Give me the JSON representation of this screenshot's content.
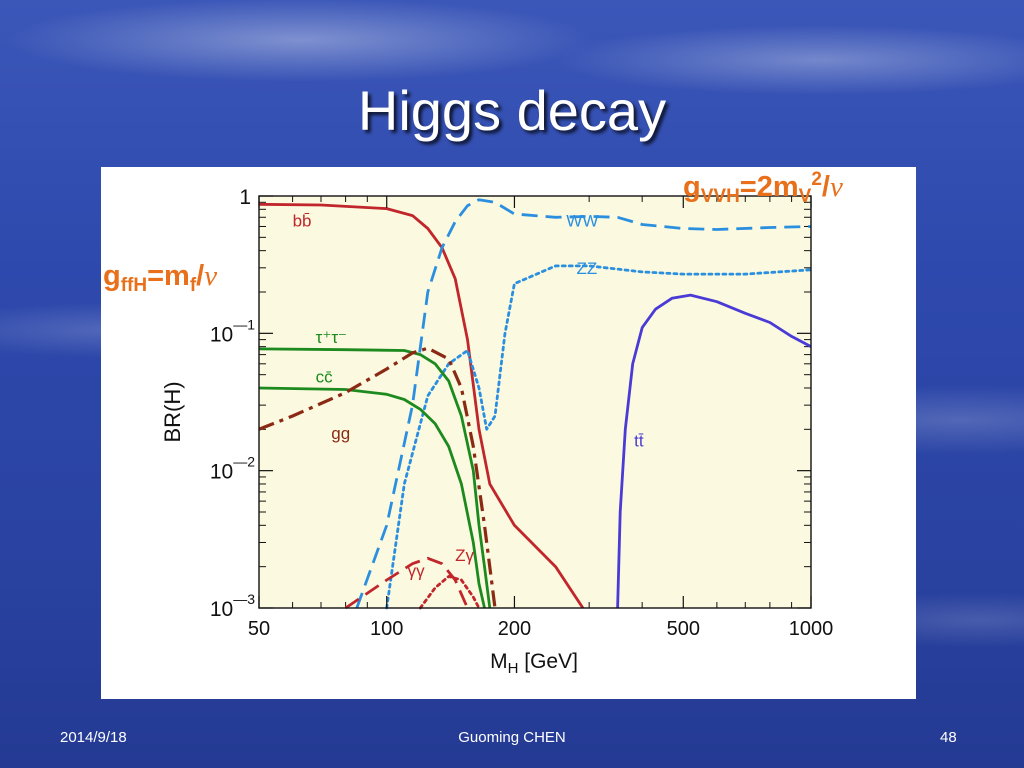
{
  "slide": {
    "title": "Higgs decay",
    "footer": {
      "date": "2014/9/18",
      "author": "Guoming CHEN",
      "page": "48"
    }
  },
  "annotations": {
    "vector": {
      "g": "g",
      "sub": "VVH",
      "eq": "=2m",
      "sub2": "V",
      "sup": "2",
      "slash": "/",
      "v": "v"
    },
    "fermion": {
      "g": "g",
      "sub": "ffH",
      "eq": "=m",
      "sub2": "f",
      "slash": "/",
      "v": "v"
    }
  },
  "colors": {
    "plot_bg": "#fbf9df",
    "bb": "#c0262b",
    "WW": "#2b8fe0",
    "ZZ": "#2b8fe0",
    "tautau": "#1c8a1e",
    "cc": "#1c8a1e",
    "gg": "#8b2a14",
    "gammagamma": "#c0262b",
    "Zgamma": "#c0262b",
    "tt": "#4a3ad6",
    "annotation": "#e8701a"
  },
  "chart_data": {
    "type": "line",
    "title": "",
    "xlabel": "M",
    "xlabel_sub": "H",
    "xlabel_unit": " [GeV]",
    "ylabel": "BR(H)",
    "xscale": "log",
    "yscale": "log",
    "xlim": [
      50,
      1000
    ],
    "ylim": [
      0.001,
      1
    ],
    "x_ticks": [
      50,
      100,
      200,
      500,
      1000
    ],
    "x_tick_labels": [
      "50",
      "100",
      "200",
      "500",
      "1000"
    ],
    "y_ticks": [
      {
        "value": 1,
        "base": "1",
        "exp": ""
      },
      {
        "value": 0.1,
        "base": "10",
        "exp": "—1"
      },
      {
        "value": 0.01,
        "base": "10",
        "exp": "—2"
      },
      {
        "value": 0.001,
        "base": "10",
        "exp": "—3"
      }
    ],
    "series": [
      {
        "name": "bb̄",
        "key": "bb",
        "style": "solid",
        "label_pos": [
          60,
          0.6
        ],
        "points": [
          [
            50,
            0.87
          ],
          [
            70,
            0.86
          ],
          [
            100,
            0.81
          ],
          [
            115,
            0.72
          ],
          [
            125,
            0.58
          ],
          [
            135,
            0.42
          ],
          [
            145,
            0.25
          ],
          [
            155,
            0.09
          ],
          [
            165,
            0.02
          ],
          [
            175,
            0.008
          ],
          [
            200,
            0.004
          ],
          [
            250,
            0.002
          ],
          [
            290,
            0.001
          ]
        ]
      },
      {
        "name": "WW",
        "key": "WW",
        "style": "dash",
        "label_pos": [
          265,
          0.6
        ],
        "points": [
          [
            85,
            0.001
          ],
          [
            100,
            0.004
          ],
          [
            115,
            0.03
          ],
          [
            125,
            0.2
          ],
          [
            135,
            0.42
          ],
          [
            145,
            0.65
          ],
          [
            155,
            0.85
          ],
          [
            165,
            0.94
          ],
          [
            180,
            0.9
          ],
          [
            200,
            0.74
          ],
          [
            250,
            0.7
          ],
          [
            300,
            0.71
          ],
          [
            350,
            0.7
          ],
          [
            400,
            0.62
          ],
          [
            500,
            0.58
          ],
          [
            600,
            0.57
          ],
          [
            800,
            0.59
          ],
          [
            1000,
            0.6
          ]
        ]
      },
      {
        "name": "ZZ",
        "key": "ZZ",
        "style": "dot",
        "label_pos": [
          280,
          0.27
        ],
        "points": [
          [
            100,
            0.001
          ],
          [
            110,
            0.008
          ],
          [
            125,
            0.035
          ],
          [
            140,
            0.06
          ],
          [
            155,
            0.075
          ],
          [
            165,
            0.04
          ],
          [
            172,
            0.02
          ],
          [
            180,
            0.025
          ],
          [
            190,
            0.1
          ],
          [
            200,
            0.23
          ],
          [
            250,
            0.31
          ],
          [
            300,
            0.31
          ],
          [
            400,
            0.28
          ],
          [
            500,
            0.27
          ],
          [
            700,
            0.27
          ],
          [
            1000,
            0.29
          ]
        ]
      },
      {
        "name": "τ⁺τ⁻",
        "key": "tautau",
        "style": "solid",
        "label_pos": [
          68,
          0.085
        ],
        "points": [
          [
            50,
            0.077
          ],
          [
            80,
            0.076
          ],
          [
            110,
            0.075
          ],
          [
            120,
            0.07
          ],
          [
            130,
            0.06
          ],
          [
            140,
            0.045
          ],
          [
            150,
            0.025
          ],
          [
            160,
            0.01
          ],
          [
            165,
            0.004
          ],
          [
            170,
            0.002
          ],
          [
            175,
            0.001
          ]
        ]
      },
      {
        "name": "cc̄",
        "key": "cc",
        "style": "solid",
        "label_pos": [
          68,
          0.044
        ],
        "points": [
          [
            50,
            0.04
          ],
          [
            80,
            0.039
          ],
          [
            100,
            0.036
          ],
          [
            110,
            0.033
          ],
          [
            120,
            0.028
          ],
          [
            130,
            0.022
          ],
          [
            140,
            0.015
          ],
          [
            150,
            0.008
          ],
          [
            160,
            0.003
          ],
          [
            165,
            0.0015
          ],
          [
            170,
            0.001
          ]
        ]
      },
      {
        "name": "gg",
        "key": "gg",
        "style": "dashdot",
        "label_pos": [
          74,
          0.017
        ],
        "points": [
          [
            50,
            0.02
          ],
          [
            60,
            0.025
          ],
          [
            80,
            0.037
          ],
          [
            100,
            0.055
          ],
          [
            115,
            0.072
          ],
          [
            125,
            0.078
          ],
          [
            140,
            0.065
          ],
          [
            150,
            0.04
          ],
          [
            160,
            0.015
          ],
          [
            170,
            0.004
          ],
          [
            180,
            0.001
          ]
        ]
      },
      {
        "name": "γγ",
        "key": "gammagamma",
        "style": "dash",
        "label_pos": [
          112,
          0.0017
        ],
        "points": [
          [
            80,
            0.001
          ],
          [
            100,
            0.0016
          ],
          [
            115,
            0.0021
          ],
          [
            125,
            0.0023
          ],
          [
            135,
            0.0021
          ],
          [
            145,
            0.0016
          ],
          [
            155,
            0.001
          ]
        ]
      },
      {
        "name": "Zγ",
        "key": "Zgamma",
        "style": "dot",
        "label_pos": [
          145,
          0.0022
        ],
        "points": [
          [
            120,
            0.001
          ],
          [
            130,
            0.0014
          ],
          [
            140,
            0.0017
          ],
          [
            150,
            0.0016
          ],
          [
            160,
            0.0012
          ],
          [
            165,
            0.001
          ]
        ]
      },
      {
        "name": "tt̄",
        "key": "tt",
        "style": "solid",
        "label_pos": [
          383,
          0.015
        ],
        "points": [
          [
            350,
            0.001
          ],
          [
            355,
            0.005
          ],
          [
            365,
            0.02
          ],
          [
            380,
            0.06
          ],
          [
            400,
            0.11
          ],
          [
            430,
            0.15
          ],
          [
            470,
            0.18
          ],
          [
            520,
            0.19
          ],
          [
            600,
            0.17
          ],
          [
            700,
            0.14
          ],
          [
            800,
            0.12
          ],
          [
            900,
            0.095
          ],
          [
            1000,
            0.08
          ]
        ]
      }
    ]
  }
}
